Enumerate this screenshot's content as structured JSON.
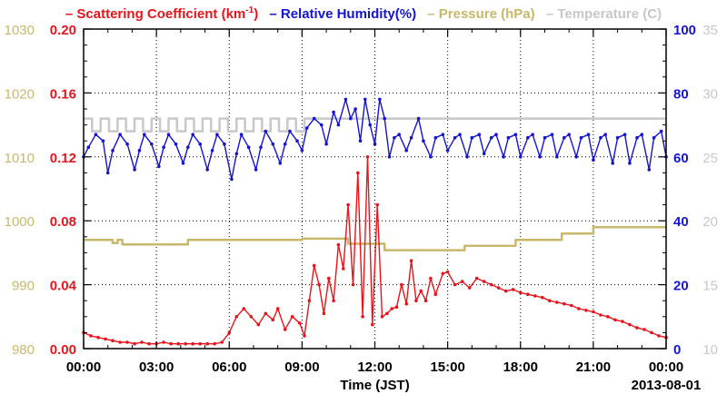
{
  "chart_data": {
    "type": "line",
    "title": "",
    "x": {
      "label": "Time (JST)",
      "ticks": [
        "00:00",
        "03:00",
        "06:00",
        "09:00",
        "12:00",
        "15:00",
        "18:00",
        "21:00",
        "00:00"
      ],
      "date_label": "2013-08-01",
      "range_hours": [
        0,
        24
      ]
    },
    "axes": {
      "scattering": {
        "ticks": [
          "0.00",
          "0.04",
          "0.08",
          "0.12",
          "0.16",
          "0.20"
        ],
        "range": [
          0,
          0.2
        ],
        "color": "#e8141c",
        "side": "left-inner"
      },
      "pressure": {
        "ticks": [
          "980",
          "990",
          "1000",
          "1010",
          "1020",
          "1030"
        ],
        "range": [
          980,
          1030
        ],
        "color": "#c8b86c",
        "side": "left-outer"
      },
      "humidity": {
        "ticks": [
          "0",
          "20",
          "40",
          "60",
          "80",
          "100"
        ],
        "range": [
          0,
          100
        ],
        "color": "#1414d2",
        "side": "right-inner"
      },
      "temperature": {
        "ticks": [
          "10",
          "15",
          "20",
          "25",
          "30",
          "35"
        ],
        "range": [
          10,
          35
        ],
        "color": "#c8c8c8",
        "side": "right-outer"
      }
    },
    "grid": true,
    "legend": {
      "position": "top",
      "items": [
        {
          "name": "Scattering Coefficient (km",
          "sup": "-1",
          "tail": ")",
          "color": "#e8141c"
        },
        {
          "name": "Relative Humidity(%)",
          "color": "#1414d2"
        },
        {
          "name": "Pressure (hPa)",
          "color": "#c8b86c"
        },
        {
          "name": "Temperature (C)",
          "color": "#c8c8c8"
        }
      ]
    },
    "series": [
      {
        "name": "Pressure (hPa)",
        "axis": "pressure",
        "color": "#c8b86c",
        "x": [
          0,
          1.2,
          1.2,
          1.4,
          1.4,
          1.6,
          1.6,
          4.3,
          4.3,
          9.0,
          9.0,
          10.9,
          10.9,
          12.4,
          12.4,
          15.7,
          15.7,
          17.8,
          17.8,
          19.7,
          19.7,
          21.0,
          21.0,
          24
        ],
        "values": [
          997,
          997,
          996.5,
          996.5,
          997,
          997,
          996.3,
          996.3,
          997,
          997,
          997.2,
          997.2,
          996.4,
          996.4,
          995.4,
          995.4,
          996.1,
          996.1,
          997,
          997,
          998,
          998,
          999,
          999
        ]
      },
      {
        "name": "Temperature (C)",
        "axis": "temperature",
        "color": "#c8c8c8",
        "x": [
          0,
          0.35,
          0.35,
          0.7,
          0.7,
          1.05,
          1.05,
          1.4,
          1.4,
          1.75,
          1.75,
          2.1,
          2.1,
          2.45,
          2.45,
          2.8,
          2.8,
          3.15,
          3.15,
          3.5,
          3.5,
          3.85,
          3.85,
          4.2,
          4.2,
          4.55,
          4.55,
          4.9,
          4.9,
          5.25,
          5.25,
          5.6,
          5.6,
          5.95,
          5.95,
          6.3,
          6.3,
          6.65,
          6.65,
          7.0,
          7.0,
          7.35,
          7.35,
          7.7,
          7.7,
          8.05,
          8.05,
          8.4,
          8.4,
          8.75,
          8.75,
          9.1,
          9.1,
          24
        ],
        "values": [
          28,
          28,
          27,
          27,
          28,
          28,
          27,
          27,
          28,
          28,
          27,
          27,
          28,
          28,
          27,
          27,
          28,
          28,
          27,
          27,
          28,
          28,
          27,
          27,
          28,
          28,
          27,
          27,
          28,
          28,
          27,
          27,
          28,
          28,
          27,
          27,
          28,
          28,
          27,
          27,
          28,
          28,
          27,
          27,
          28,
          28,
          27,
          27,
          28,
          28,
          27,
          27,
          28,
          28
        ]
      },
      {
        "name": "Relative Humidity(%)",
        "axis": "humidity",
        "color": "#1414d2",
        "x": [
          0.0,
          0.2,
          0.5,
          0.8,
          1.0,
          1.2,
          1.5,
          1.8,
          2.1,
          2.3,
          2.5,
          2.8,
          3.1,
          3.3,
          3.5,
          3.8,
          4.1,
          4.3,
          4.5,
          4.8,
          5.1,
          5.3,
          5.5,
          5.8,
          6.1,
          6.3,
          6.5,
          6.8,
          7.1,
          7.3,
          7.5,
          7.8,
          8.1,
          8.3,
          8.5,
          8.8,
          9.0,
          9.2,
          9.5,
          9.8,
          10.0,
          10.3,
          10.5,
          10.8,
          11.0,
          11.2,
          11.4,
          11.6,
          11.8,
          12.0,
          12.2,
          12.4,
          12.6,
          12.8,
          13.0,
          13.3,
          13.5,
          13.8,
          14.0,
          14.3,
          14.5,
          14.8,
          15.0,
          15.3,
          15.5,
          15.8,
          16.0,
          16.3,
          16.5,
          16.8,
          17.0,
          17.3,
          17.5,
          17.8,
          18.0,
          18.3,
          18.5,
          18.8,
          19.0,
          19.3,
          19.5,
          19.8,
          20.0,
          20.3,
          20.5,
          20.8,
          21.0,
          21.3,
          21.5,
          21.8,
          22.0,
          22.3,
          22.5,
          22.8,
          23.0,
          23.3,
          23.5,
          23.8,
          24.0
        ],
        "values": [
          60,
          63,
          67,
          65,
          55,
          62,
          67,
          64,
          56,
          62,
          67,
          64,
          57,
          63,
          67,
          64,
          58,
          63,
          67,
          64,
          56,
          62,
          67,
          64,
          53,
          61,
          67,
          63,
          56,
          63,
          68,
          64,
          58,
          64,
          68,
          65,
          62,
          69,
          72,
          70,
          64,
          74,
          70,
          78,
          72,
          75,
          65,
          78,
          70,
          64,
          78,
          72,
          60,
          66,
          67,
          62,
          66,
          72,
          65,
          60,
          66,
          67,
          62,
          66,
          67,
          60,
          66,
          67,
          61,
          66,
          67,
          60,
          66,
          67,
          60,
          66,
          67,
          60,
          66,
          67,
          60,
          66,
          67,
          60,
          66,
          67,
          59,
          66,
          67,
          58,
          66,
          67,
          58,
          66,
          67,
          56,
          66,
          68,
          60
        ]
      },
      {
        "name": "Scattering Coefficient (km-1)",
        "axis": "scattering",
        "color": "#e8141c",
        "x": [
          0.0,
          0.3,
          0.6,
          0.9,
          1.2,
          1.5,
          1.8,
          2.1,
          2.4,
          2.7,
          3.0,
          3.3,
          3.6,
          3.9,
          4.2,
          4.5,
          4.8,
          5.1,
          5.4,
          5.7,
          6.0,
          6.3,
          6.6,
          6.9,
          7.2,
          7.5,
          7.8,
          8.0,
          8.3,
          8.6,
          8.9,
          9.1,
          9.3,
          9.5,
          9.7,
          9.9,
          10.1,
          10.3,
          10.5,
          10.7,
          10.9,
          11.1,
          11.3,
          11.5,
          11.7,
          11.9,
          12.1,
          12.3,
          12.5,
          12.7,
          12.9,
          13.1,
          13.3,
          13.5,
          13.7,
          13.9,
          14.1,
          14.3,
          14.5,
          14.8,
          15.0,
          15.3,
          15.6,
          15.9,
          16.2,
          16.5,
          16.8,
          17.1,
          17.4,
          17.7,
          18.0,
          18.3,
          18.6,
          18.9,
          19.2,
          19.5,
          19.8,
          20.1,
          20.4,
          20.7,
          21.0,
          21.3,
          21.6,
          21.9,
          22.2,
          22.5,
          22.8,
          23.1,
          23.4,
          23.7,
          24.0
        ],
        "values": [
          0.01,
          0.008,
          0.007,
          0.006,
          0.005,
          0.004,
          0.004,
          0.003,
          0.004,
          0.003,
          0.003,
          0.004,
          0.003,
          0.003,
          0.003,
          0.003,
          0.003,
          0.003,
          0.003,
          0.004,
          0.01,
          0.02,
          0.025,
          0.02,
          0.015,
          0.022,
          0.018,
          0.025,
          0.012,
          0.02,
          0.016,
          0.008,
          0.03,
          0.052,
          0.04,
          0.022,
          0.044,
          0.03,
          0.065,
          0.05,
          0.09,
          0.04,
          0.11,
          0.02,
          0.12,
          0.015,
          0.09,
          0.02,
          0.022,
          0.025,
          0.026,
          0.04,
          0.028,
          0.055,
          0.03,
          0.036,
          0.03,
          0.044,
          0.034,
          0.047,
          0.048,
          0.04,
          0.042,
          0.038,
          0.044,
          0.042,
          0.04,
          0.038,
          0.036,
          0.037,
          0.035,
          0.034,
          0.033,
          0.032,
          0.03,
          0.029,
          0.028,
          0.027,
          0.025,
          0.024,
          0.023,
          0.021,
          0.02,
          0.018,
          0.017,
          0.015,
          0.013,
          0.012,
          0.01,
          0.008,
          0.007
        ]
      }
    ]
  }
}
